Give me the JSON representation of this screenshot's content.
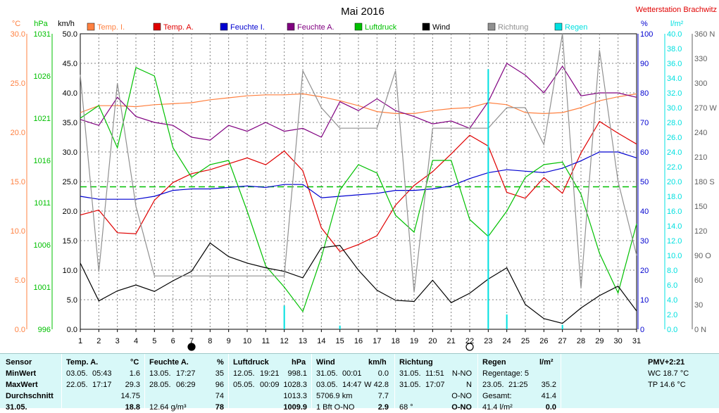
{
  "header": {
    "title": "Mai 2016",
    "station": "Wetterstation Brachwitz"
  },
  "colors": {
    "temp_i": "#ff8040",
    "temp_a": "#e00000",
    "hum_i": "#0000d0",
    "hum_a": "#800080",
    "pressure": "#00c000",
    "rain": "#00e0e0",
    "wind": "#000000",
    "direction": "#909090",
    "grid": "#808080",
    "station": "#e00000"
  },
  "chart_data": {
    "type": "line",
    "title": "Mai 2016",
    "x": [
      1,
      2,
      3,
      4,
      5,
      6,
      7,
      8,
      9,
      10,
      11,
      12,
      13,
      14,
      15,
      16,
      17,
      18,
      19,
      20,
      21,
      22,
      23,
      24,
      25,
      26,
      27,
      28,
      29,
      30,
      31
    ],
    "x_ticks": [
      "1",
      "2",
      "3",
      "4",
      "5",
      "6",
      "7",
      "8",
      "9",
      "10",
      "11",
      "12",
      "13",
      "14",
      "15",
      "16",
      "17",
      "18",
      "19",
      "20",
      "21",
      "22",
      "23",
      "24",
      "25",
      "26",
      "27",
      "28",
      "29",
      "30",
      "31"
    ],
    "axes": {
      "temperature": {
        "unit": "°C",
        "range": [
          0,
          30
        ],
        "ticks": [
          "0.0",
          "5.0",
          "10.0",
          "15.0",
          "20.0",
          "25.0",
          "30.0"
        ]
      },
      "pressure": {
        "unit": "hPa",
        "range": [
          996,
          1031
        ],
        "ticks": [
          "996",
          "1001",
          "1006",
          "1011",
          "1016",
          "1021",
          "1026",
          "1031"
        ]
      },
      "wind": {
        "unit": "km/h",
        "range": [
          0,
          50
        ],
        "ticks": [
          "0.0",
          "5.0",
          "10.0",
          "15.0",
          "20.0",
          "25.0",
          "30.0",
          "35.0",
          "40.0",
          "45.0",
          "50.0"
        ]
      },
      "humidity": {
        "unit": "%",
        "range": [
          0,
          100
        ],
        "ticks": [
          "0",
          "10",
          "20",
          "30",
          "40",
          "50",
          "60",
          "70",
          "80",
          "90",
          "100"
        ]
      },
      "rain": {
        "unit": "l/m²",
        "range": [
          0,
          40
        ],
        "ticks": [
          "0.0",
          "2.0",
          "4.0",
          "6.0",
          "8.0",
          "10.0",
          "12.0",
          "14.0",
          "16.0",
          "18.0",
          "20.0",
          "22.0",
          "24.0",
          "26.0",
          "28.0",
          "30.0",
          "32.0",
          "34.0",
          "36.0",
          "38.0",
          "40.0"
        ]
      },
      "direction": {
        "unit": "",
        "range": [
          0,
          360
        ],
        "ticks": [
          "0 N",
          "30",
          "60",
          "90 O",
          "120",
          "150",
          "180 S",
          "210",
          "240",
          "270 W",
          "300",
          "330",
          "360 N"
        ]
      }
    },
    "series": [
      {
        "name": "Temp. I.",
        "axis": "temperature",
        "color": "#ff8040",
        "values": [
          22.0,
          22.7,
          22.7,
          22.6,
          22.8,
          22.9,
          23.0,
          23.3,
          23.5,
          23.7,
          23.8,
          23.8,
          23.9,
          23.6,
          23.2,
          22.7,
          22.1,
          21.9,
          21.9,
          22.2,
          22.4,
          22.5,
          23.0,
          22.8,
          22.0,
          21.9,
          22.0,
          22.5,
          23.2,
          23.6,
          23.9
        ]
      },
      {
        "name": "Temp. A.",
        "axis": "temperature",
        "color": "#e00000",
        "values": [
          11.6,
          12.1,
          9.8,
          9.7,
          13.1,
          14.9,
          15.8,
          16.2,
          16.8,
          17.4,
          16.7,
          18.1,
          16.1,
          10.3,
          7.9,
          8.6,
          9.5,
          12.6,
          14.6,
          16.0,
          17.8,
          19.7,
          18.6,
          13.9,
          13.3,
          15.4,
          13.8,
          17.9,
          21.1,
          19.9,
          18.8
        ]
      },
      {
        "name": "Feuchte I.",
        "axis": "humidity",
        "color": "#0000d0",
        "values": [
          45,
          44,
          44,
          44,
          45,
          47,
          47.5,
          47.5,
          48,
          48.5,
          48,
          49,
          49,
          44.5,
          45,
          45.5,
          46,
          47,
          47,
          47.5,
          48.5,
          51,
          53,
          54,
          53.5,
          53,
          54.5,
          57,
          60,
          60,
          58
        ]
      },
      {
        "name": "Feuchte A.",
        "axis": "humidity",
        "color": "#800080",
        "values": [
          71,
          69,
          78.5,
          72,
          70,
          69,
          65,
          64,
          69,
          67,
          70,
          67,
          68,
          65,
          77,
          74,
          78,
          74,
          72,
          69.5,
          70.5,
          68,
          77,
          90,
          86,
          80,
          89,
          79,
          80,
          80,
          78.5
        ]
      },
      {
        "name": "Luftdruck",
        "axis": "pressure",
        "color": "#00c000",
        "values": [
          1021,
          1022.5,
          1017.5,
          1027,
          1026,
          1017.5,
          1014,
          1015.5,
          1016,
          1010,
          1003.5,
          1001,
          998.1,
          1004.5,
          1012.5,
          1015.5,
          1014.5,
          1009.5,
          1007.5,
          1016,
          1016,
          1009,
          1007,
          1010,
          1014,
          1015.5,
          1015.8,
          1012,
          1005,
          1000.3,
          1008.5
        ]
      },
      {
        "name": "Wind",
        "axis": "wind",
        "color": "#000000",
        "values": [
          11.2,
          4.8,
          6.5,
          7.5,
          6.4,
          8.2,
          9.8,
          14.6,
          12.3,
          11.2,
          10.4,
          9.8,
          8.7,
          13.8,
          14.2,
          10.0,
          6.6,
          4.9,
          4.7,
          8.3,
          4.5,
          6.1,
          8.5,
          10.4,
          4.2,
          1.8,
          1.0,
          3.6,
          5.7,
          7.3,
          3.1
        ]
      },
      {
        "name": "Richtung",
        "axis": "direction",
        "color": "#909090",
        "values": [
          310,
          70,
          300,
          150,
          65,
          65,
          65,
          65,
          65,
          65,
          65,
          65,
          315,
          270,
          245,
          245,
          245,
          315,
          45,
          245,
          245,
          245,
          245,
          270,
          270,
          225,
          360,
          50,
          340,
          180,
          90
        ]
      },
      {
        "name": "Regen",
        "axis": "rain",
        "color": "#00e0e0",
        "values": [
          0,
          0,
          0,
          0,
          0,
          0,
          0,
          0,
          0,
          0,
          0,
          3.2,
          0,
          0,
          0.5,
          0,
          0,
          0,
          0,
          0,
          0,
          0,
          35.2,
          2.0,
          0,
          0,
          0.6,
          0,
          0,
          0,
          0
        ]
      }
    ],
    "reference_line": {
      "axis": "wind",
      "value": 24.1,
      "color": "#00c000"
    },
    "markers": [
      {
        "x": 7,
        "kind": "full-moon-filled"
      },
      {
        "x": 22,
        "kind": "new-moon-open"
      }
    ],
    "legend_position": "top"
  },
  "stats": {
    "row_labels": [
      "Sensor",
      "MinWert",
      "MaxWert",
      "Durchschnitt",
      "31.05."
    ],
    "temp": {
      "title": "Temp. A.",
      "unit": "°C",
      "min_date": "03.05.",
      "min_time": "05:43",
      "min_val": "1.6",
      "max_date": "22.05.",
      "max_time": "17:17",
      "max_val": "29.3",
      "avg": "14.75",
      "today": "18.8"
    },
    "hum": {
      "title": "Feuchte A.",
      "unit": "%",
      "min_date": "13.05.",
      "min_time": "17:27",
      "min_val": "35",
      "max_date": "28.05.",
      "max_time": "06:29",
      "max_val": "96",
      "avg": "74",
      "today_abs": "12.64 g/m³",
      "today": "78"
    },
    "press": {
      "title": "Luftdruck",
      "unit": "hPa",
      "min_date": "12.05.",
      "min_time": "19:21",
      "min_val": "998.1",
      "max_date": "05.05.",
      "max_time": "00:09",
      "max_val": "1028.3",
      "avg": "1013.3",
      "today": "1009.9"
    },
    "wind": {
      "title": "Wind",
      "unit": "km/h",
      "min_date": "31.05.",
      "min_time": "00:01",
      "min_val": "0.0",
      "max_date": "03.05.",
      "max_time": "14:47",
      "max_val": "W 42.8",
      "avg_dist": "5706.9 km",
      "avg": "7.7",
      "today_bft": "1 Bft O-NO",
      "today": "2.9"
    },
    "dir": {
      "title": "Richtung",
      "min_date": "31.05.",
      "min_time": "11:51",
      "min_val": "N-NO",
      "max_date": "31.05.",
      "max_time": "17:07",
      "max_val": "N",
      "avg": "O-NO",
      "today_deg": "68 °",
      "today": "O-NO"
    },
    "rain": {
      "title": "Regen",
      "unit": "l/m²",
      "days_label": "Regentage: 5",
      "max_date": "23.05.",
      "max_time": "21:25",
      "max_val": "35.2",
      "total_label": "Gesamt:",
      "total": "41.4",
      "today_left": "41.4 l/m²",
      "today": "0.0"
    },
    "pmv": {
      "title": "PMV+2:21",
      "wc": "WC 18.7 °C",
      "tp": "TP 14.6 °C"
    }
  }
}
